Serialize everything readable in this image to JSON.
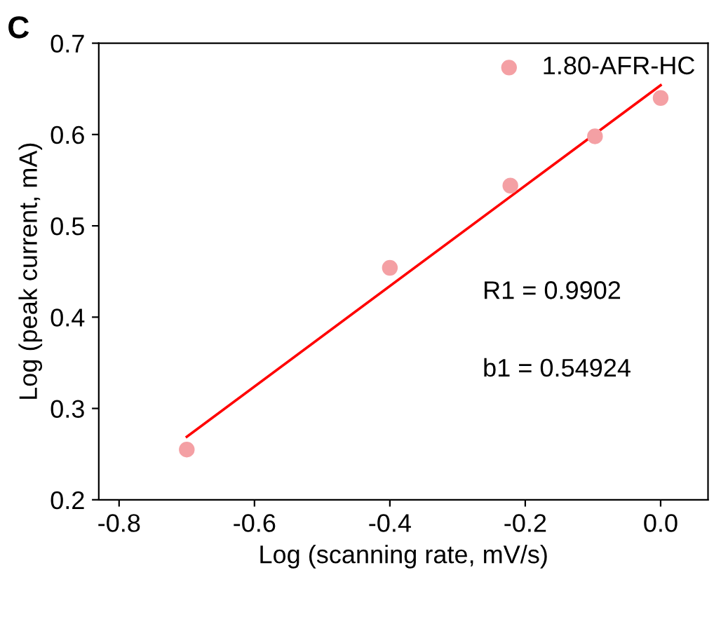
{
  "chart_data": {
    "type": "scatter",
    "xlabel": "Log (scanning rate, mV/s)",
    "ylabel": "Log (peak current, mA)",
    "annotations": [
      "C",
      "R1 = 0.9902",
      "b1 = 0.54924"
    ],
    "series": [
      {
        "name": "1.80-AFR-HC",
        "color": "#f4a0a4",
        "x": [
          -0.7,
          -0.4,
          -0.222,
          -0.097,
          0.0
        ],
        "values": [
          0.255,
          0.454,
          0.544,
          0.598,
          0.64
        ],
        "marker": "circle"
      },
      {
        "type": "line",
        "color": "#ff0000",
        "x": [
          -0.7,
          0.0
        ],
        "values": [
          0.269,
          0.654
        ]
      }
    ],
    "xlim": [
      -0.83,
      0.07
    ],
    "ylim": [
      0.2,
      0.7
    ],
    "xticks": [
      -0.8,
      -0.6,
      -0.4,
      -0.2,
      {
        "value": 0,
        "label": "0.0"
      }
    ],
    "yticks": [
      0.2,
      0.3,
      0.4,
      0.5,
      0.6,
      0.7
    ],
    "grid": false,
    "legend": "top right"
  }
}
